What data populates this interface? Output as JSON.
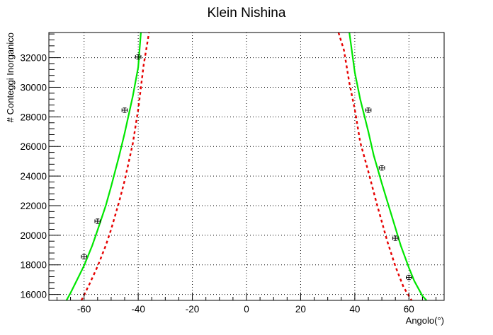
{
  "chart_data": {
    "type": "scatter",
    "title": "Klein Nishina",
    "xlabel": "Angolo(°)",
    "ylabel": "# Conteggi Inorganico",
    "xlim": [
      -73,
      73
    ],
    "ylim": [
      15600,
      33700
    ],
    "x_ticks": [
      -60,
      -40,
      -20,
      0,
      20,
      40,
      60
    ],
    "y_ticks": [
      16000,
      18000,
      20000,
      22000,
      24000,
      26000,
      28000,
      30000,
      32000
    ],
    "x_tick_labels": [
      "-60",
      "-40",
      "-20",
      "0",
      "20",
      "40",
      "60"
    ],
    "y_tick_labels": [
      "16000",
      "18000",
      "20000",
      "22000",
      "24000",
      "26000",
      "28000",
      "30000",
      "32000"
    ],
    "grid": true,
    "points": {
      "x": [
        -60,
        -55,
        -45,
        -40,
        45,
        50,
        55,
        60
      ],
      "y": [
        18550,
        20950,
        28450,
        32050,
        28450,
        24550,
        19800,
        17150
      ],
      "x_err": 1,
      "y_err": 150
    },
    "series": [
      {
        "color": "#00e600",
        "style": "solid",
        "x": [
          -66.5,
          -65,
          -62,
          -60,
          -57,
          -55,
          -52,
          -50,
          -47,
          -45,
          -42,
          -40,
          -39,
          38,
          40,
          42,
          45,
          47,
          50,
          52,
          55,
          57,
          60,
          62,
          65,
          66.5
        ],
        "y": [
          15600,
          16100,
          17200,
          17950,
          19300,
          20350,
          22000,
          23300,
          25400,
          26900,
          29400,
          31350,
          33700,
          33700,
          31000,
          29200,
          27000,
          25400,
          23500,
          22300,
          20500,
          19300,
          17800,
          16900,
          15900,
          15600
        ]
      },
      {
        "color": "#e60000",
        "style": "dashed",
        "x": [
          -61,
          -58,
          -55,
          -52,
          -50,
          -47,
          -45,
          -42,
          -40,
          -38,
          -36,
          34,
          36,
          38,
          40,
          42,
          45,
          48,
          50,
          52,
          55,
          58,
          61
        ],
        "y": [
          15600,
          16700,
          17900,
          19300,
          20400,
          22300,
          23700,
          26200,
          28500,
          31500,
          33700,
          33700,
          32500,
          30300,
          28500,
          26300,
          24300,
          22200,
          20900,
          19600,
          17900,
          16500,
          15600
        ]
      }
    ]
  }
}
